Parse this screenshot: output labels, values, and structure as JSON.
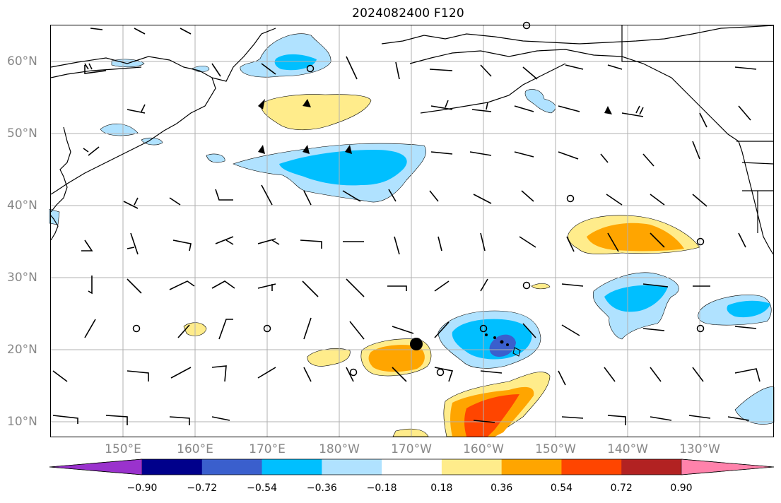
{
  "title": "2024082400 F120",
  "lat_labels": [
    "60°N",
    "50°N",
    "40°N",
    "30°N",
    "20°N",
    "10°N"
  ],
  "lon_labels": [
    "150°E",
    "160°E",
    "170°E",
    "180°W",
    "170°W",
    "160°W",
    "150°W",
    "140°W",
    "130°W"
  ],
  "colorbar": {
    "levels": [
      "−0.90",
      "−0.72",
      "−0.54",
      "−0.36",
      "−0.18",
      "0.18",
      "0.36",
      "0.54",
      "0.72",
      "0.90"
    ],
    "colors": [
      "#9a32cd",
      "#00008b",
      "#3a5fcd",
      "#00bfff",
      "#b0e2ff",
      "#ffffff",
      "#ffec8b",
      "#ffa500",
      "#ff4500",
      "#b22222",
      "#ff82ab"
    ]
  },
  "colors": {
    "land_line": "#000000",
    "grid": "#b0b0b0",
    "label": "#888888"
  },
  "map_extent": {
    "lon_west": 140,
    "lon_east": 240,
    "lat_south": 8,
    "lat_north": 65
  }
}
